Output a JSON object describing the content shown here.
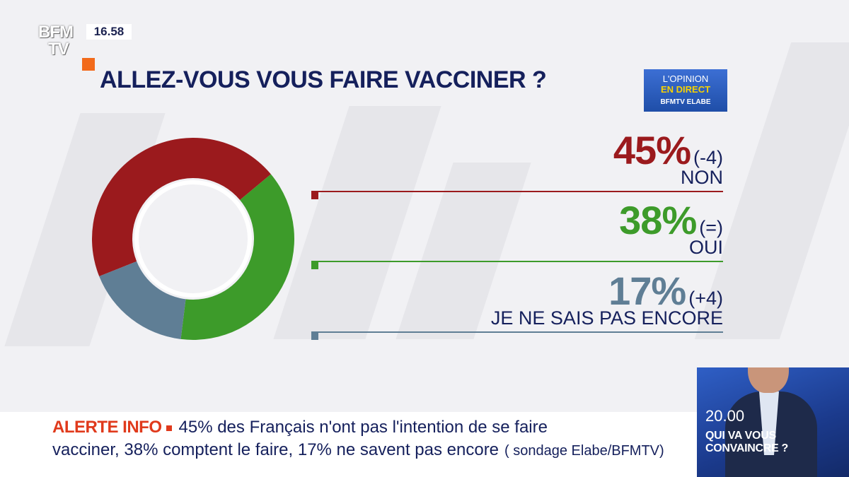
{
  "channel": {
    "logo_line1": "BFM",
    "logo_line2": "TV",
    "time": "16.58"
  },
  "badge": {
    "line1": "L'OPINION",
    "line2": "EN DIRECT",
    "line3": "BFMTV ELABE"
  },
  "title": "ALLEZ-VOUS VOUS FAIRE VACCINER ?",
  "colors": {
    "non": "#9b1a1d",
    "oui": "#3d9b2a",
    "nsp": "#5f7e95",
    "navy": "#15205c",
    "alert": "#e03a1c"
  },
  "chart_data": {
    "type": "pie",
    "title": "ALLEZ-VOUS VOUS FAIRE VACCINER ?",
    "donut": true,
    "slices": [
      {
        "label": "NON",
        "value": 45,
        "pct_text": "45%",
        "change": "(-4)",
        "color": "#9b1a1d"
      },
      {
        "label": "OUI",
        "value": 38,
        "pct_text": "38%",
        "change": "(=)",
        "color": "#3d9b2a"
      },
      {
        "label": "JE NE SAIS PAS ENCORE",
        "value": 17,
        "pct_text": "17%",
        "change": "(+4)",
        "color": "#5f7e95"
      }
    ]
  },
  "promo": {
    "time": "20.00",
    "line1": "QUI VA VOUS",
    "line2": "CONVAINCRE ?"
  },
  "ticker": {
    "alert_label": "ALERTE INFO",
    "line1": "45% des Français n'ont pas l'intention de se faire",
    "line2": "vacciner, 38% comptent le faire, 17% ne savent pas encore",
    "source": "( sondage Elabe/BFMTV)"
  }
}
